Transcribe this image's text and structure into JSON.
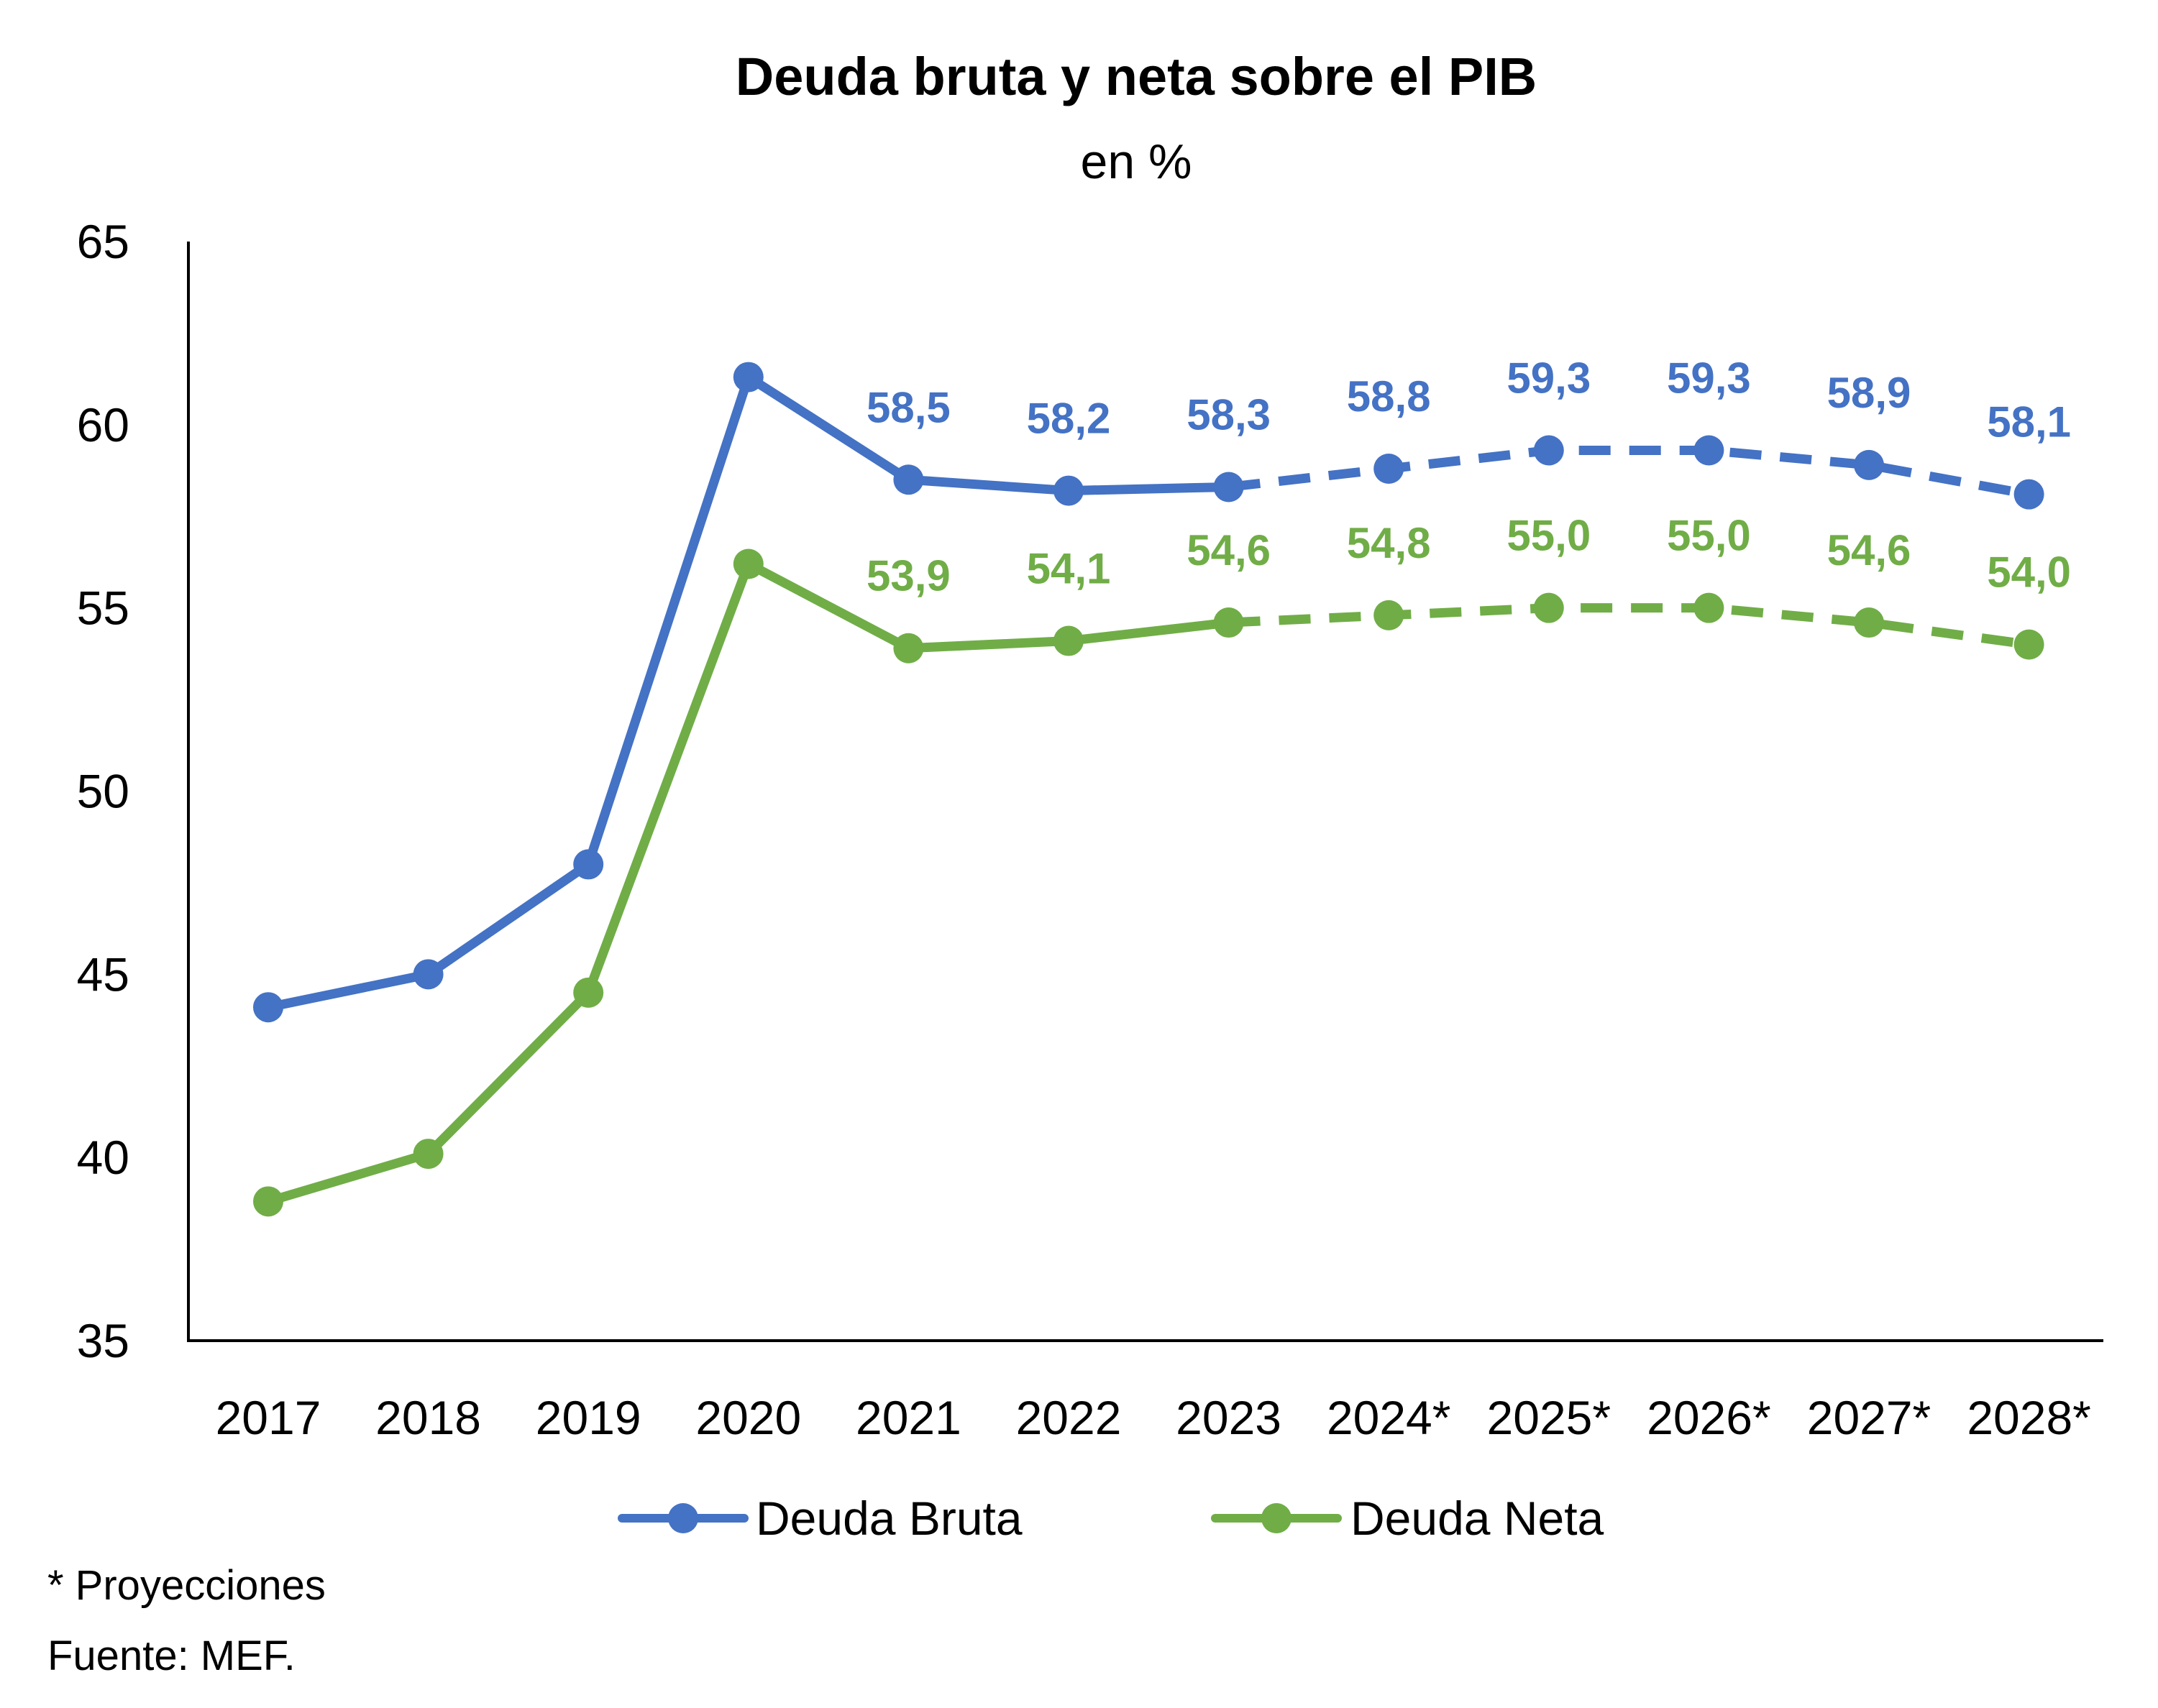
{
  "chart_data": {
    "type": "line",
    "title": "Deuda bruta y neta sobre el PIB",
    "subtitle": "en %",
    "xlabel": "",
    "ylabel": "",
    "categories": [
      "2017",
      "2018",
      "2019",
      "2020",
      "2021",
      "2022",
      "2023",
      "2024*",
      "2025*",
      "2026*",
      "2027*",
      "2028*"
    ],
    "ylim": [
      35,
      65
    ],
    "yticks": [
      "35",
      "40",
      "45",
      "50",
      "55",
      "60",
      "65"
    ],
    "grid": false,
    "legend_position": "bottom",
    "projection_start_index": 6,
    "series": [
      {
        "name": "Deuda Bruta",
        "color": "#4472C4",
        "values": [
          44.1,
          45.0,
          48.0,
          61.3,
          58.5,
          58.2,
          58.3,
          58.8,
          59.3,
          59.3,
          58.9,
          58.1
        ],
        "labels": [
          "",
          "",
          "",
          "",
          "58,5",
          "58,2",
          "58,3",
          "58,8",
          "59,3",
          "59,3",
          "58,9",
          "58,1"
        ]
      },
      {
        "name": "Deuda Neta",
        "color": "#70AD47",
        "values": [
          38.8,
          40.1,
          44.5,
          56.2,
          53.9,
          54.1,
          54.6,
          54.8,
          55.0,
          55.0,
          54.6,
          54.0
        ],
        "labels": [
          "",
          "",
          "",
          "",
          "53,9",
          "54,1",
          "54,6",
          "54,8",
          "55,0",
          "55,0",
          "54,6",
          "54,0"
        ]
      }
    ]
  },
  "notes": {
    "projections": "* Proyecciones",
    "source": "Fuente: MEF."
  }
}
